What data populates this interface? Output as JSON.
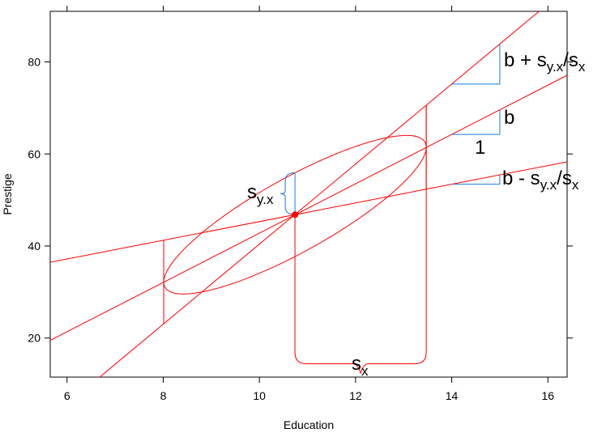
{
  "chart_data": {
    "type": "line",
    "xlabel": "Education",
    "ylabel": "Prestige",
    "xlim": [
      5.65,
      16.4
    ],
    "ylim": [
      11.5,
      91
    ],
    "x_ticks": [
      6,
      8,
      10,
      12,
      14,
      16
    ],
    "y_ticks": [
      20,
      40,
      60,
      80
    ],
    "x_tick_labels": [
      "6",
      "8",
      "10",
      "12",
      "14",
      "16"
    ],
    "y_tick_labels": [
      "20",
      "40",
      "60",
      "80"
    ],
    "grid": false,
    "center": {
      "x": 10.74,
      "y": 46.8
    },
    "s_x": 2.73,
    "s_yx": 9.1,
    "regression_lines": [
      {
        "slope": 5.36,
        "intercept": -10.8
      },
      {
        "slope": 8.7,
        "intercept": -46.6
      },
      {
        "slope": 2.03,
        "intercept": 25.0
      }
    ],
    "ellipse": {
      "rx": 2.73,
      "slope": 5.36,
      "s_yx": 9.1
    },
    "ellipse_label": "s_y.x",
    "sx_label": "s_x",
    "slope_triangles": [
      {
        "label": "b",
        "dx": 1,
        "dy": 5.36
      },
      {
        "label": "b + s_y.x/s_x",
        "dx": 1,
        "dy": 8.7
      },
      {
        "label": "b - s_y.x/s_x",
        "dx": 1,
        "dy": 2.03
      }
    ],
    "run_label": "1"
  },
  "labels": {
    "b_plus_main": "b + s",
    "b_plus_sub1": "y.x",
    "b_plus_slash": "/s",
    "b_plus_sub2": "x",
    "b_main": "b",
    "b_minus_main": "b - s",
    "b_minus_sub1": "y.x",
    "b_minus_slash": "/s",
    "b_minus_sub2": "x",
    "run_one": "1",
    "syx_main": "s",
    "syx_sub": "y.x",
    "sx_main": "s",
    "sx_sub": "x"
  },
  "colors": {
    "line": "#ff0000",
    "triangle": "#1a7adf",
    "frame": "#000000"
  }
}
